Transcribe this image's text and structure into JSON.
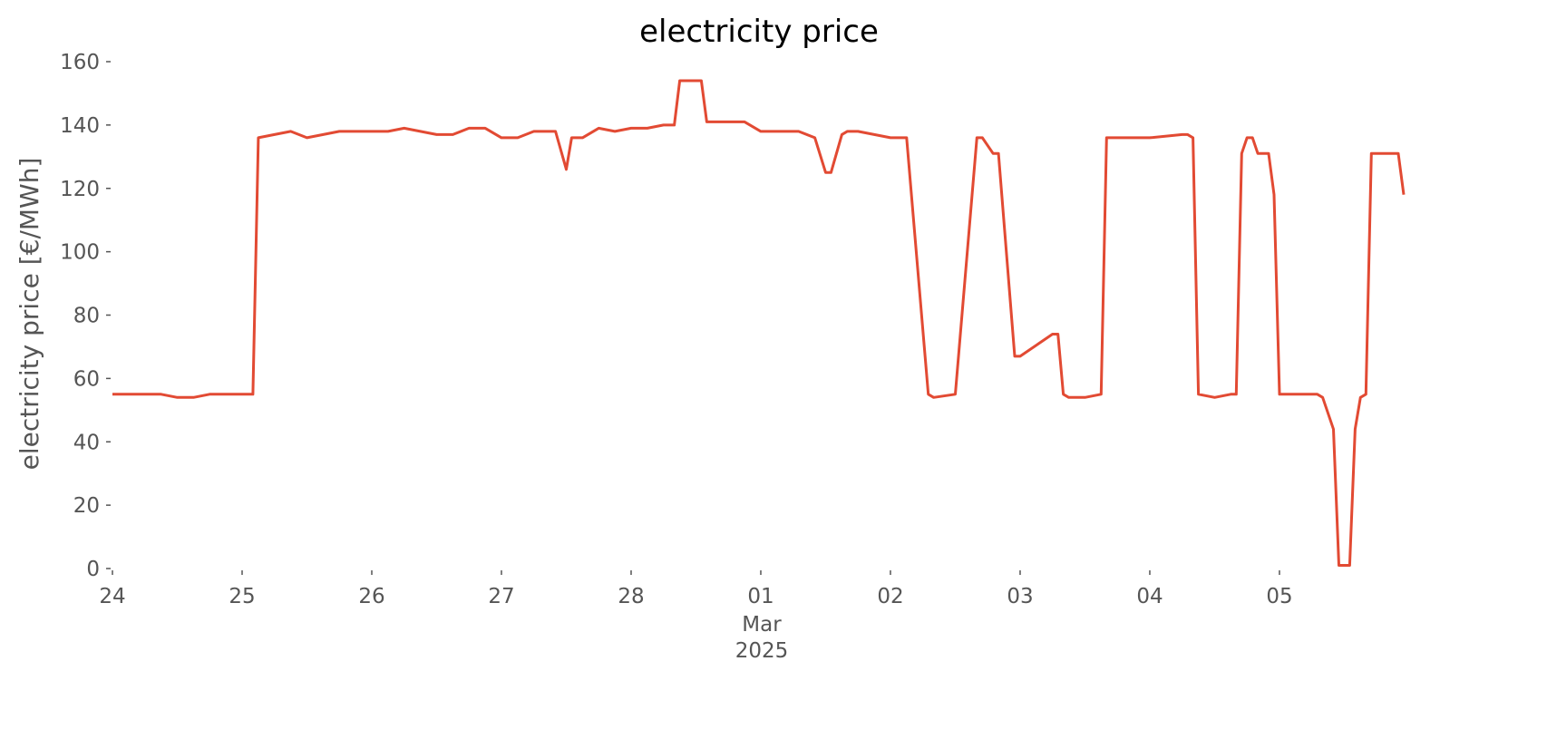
{
  "chart_data": {
    "type": "line",
    "title": "electricity price",
    "ylabel": "electricity price [€/MWh]",
    "color": "#e24a33",
    "grid": false,
    "x": [
      "2025-02-24T00:00",
      "2025-02-24T03:00",
      "2025-02-24T06:00",
      "2025-02-24T09:00",
      "2025-02-24T12:00",
      "2025-02-24T15:00",
      "2025-02-24T18:00",
      "2025-02-24T21:00",
      "2025-02-25T00:00",
      "2025-02-25T02:00",
      "2025-02-25T03:00",
      "2025-02-25T06:00",
      "2025-02-25T09:00",
      "2025-02-25T12:00",
      "2025-02-25T15:00",
      "2025-02-25T18:00",
      "2025-02-25T21:00",
      "2025-02-26T00:00",
      "2025-02-26T03:00",
      "2025-02-26T06:00",
      "2025-02-26T09:00",
      "2025-02-26T12:00",
      "2025-02-26T15:00",
      "2025-02-26T18:00",
      "2025-02-26T21:00",
      "2025-02-27T00:00",
      "2025-02-27T03:00",
      "2025-02-27T06:00",
      "2025-02-27T10:00",
      "2025-02-27T12:00",
      "2025-02-27T13:00",
      "2025-02-27T15:00",
      "2025-02-27T18:00",
      "2025-02-27T21:00",
      "2025-02-28T00:00",
      "2025-02-28T03:00",
      "2025-02-28T06:00",
      "2025-02-28T08:00",
      "2025-02-28T09:00",
      "2025-02-28T13:00",
      "2025-02-28T14:00",
      "2025-02-28T18:00",
      "2025-02-28T21:00",
      "2025-03-01T00:00",
      "2025-03-01T03:00",
      "2025-03-01T07:00",
      "2025-03-01T10:00",
      "2025-03-01T12:00",
      "2025-03-01T13:00",
      "2025-03-01T15:00",
      "2025-03-01T16:00",
      "2025-03-01T18:00",
      "2025-03-01T21:00",
      "2025-03-02T00:00",
      "2025-03-02T03:00",
      "2025-03-02T07:00",
      "2025-03-02T08:00",
      "2025-03-02T12:00",
      "2025-03-02T16:00",
      "2025-03-02T17:00",
      "2025-03-02T19:00",
      "2025-03-02T20:00",
      "2025-03-02T23:00",
      "2025-03-03T00:00",
      "2025-03-03T06:00",
      "2025-03-03T07:00",
      "2025-03-03T08:00",
      "2025-03-03T09:00",
      "2025-03-03T12:00",
      "2025-03-03T15:00",
      "2025-03-03T16:00",
      "2025-03-03T17:00",
      "2025-03-04T00:00",
      "2025-03-04T06:00",
      "2025-03-04T07:00",
      "2025-03-04T08:00",
      "2025-03-04T09:00",
      "2025-03-04T12:00",
      "2025-03-04T15:00",
      "2025-03-04T16:00",
      "2025-03-04T17:00",
      "2025-03-04T18:00",
      "2025-03-04T19:00",
      "2025-03-04T20:00",
      "2025-03-04T22:00",
      "2025-03-04T23:00",
      "2025-03-05T00:00",
      "2025-03-05T07:00",
      "2025-03-05T08:00",
      "2025-03-05T10:00",
      "2025-03-05T11:00",
      "2025-03-05T13:00",
      "2025-03-05T14:00",
      "2025-03-05T15:00",
      "2025-03-05T16:00",
      "2025-03-05T17:00",
      "2025-03-05T22:00",
      "2025-03-05T23:00"
    ],
    "values": [
      55,
      55,
      55,
      55,
      54,
      54,
      55,
      55,
      55,
      55,
      136,
      137,
      138,
      136,
      137,
      138,
      138,
      138,
      138,
      139,
      138,
      137,
      137,
      139,
      139,
      136,
      136,
      138,
      138,
      126,
      136,
      136,
      139,
      138,
      139,
      139,
      140,
      140,
      154,
      154,
      141,
      141,
      141,
      138,
      138,
      138,
      136,
      125,
      125,
      137,
      138,
      138,
      137,
      136,
      136,
      55,
      54,
      55,
      136,
      136,
      131,
      131,
      67,
      67,
      74,
      74,
      55,
      54,
      54,
      55,
      136,
      136,
      136,
      137,
      137,
      136,
      55,
      54,
      55,
      55,
      131,
      136,
      136,
      131,
      131,
      118,
      55,
      55,
      54,
      44,
      1,
      1,
      44,
      54,
      55,
      131,
      131,
      118
    ],
    "xlim": [
      "2025-02-24T00:00",
      "2025-03-05T23:00"
    ],
    "xticks": [
      {
        "value": "2025-02-24",
        "label": "24"
      },
      {
        "value": "2025-02-25",
        "label": "25"
      },
      {
        "value": "2025-02-26",
        "label": "26"
      },
      {
        "value": "2025-02-27",
        "label": "27"
      },
      {
        "value": "2025-02-28",
        "label": "28"
      },
      {
        "value": "2025-03-01",
        "label": "01"
      },
      {
        "value": "2025-03-02",
        "label": "02"
      },
      {
        "value": "2025-03-03",
        "label": "03"
      },
      {
        "value": "2025-03-04",
        "label": "04"
      },
      {
        "value": "2025-03-05",
        "label": "05"
      }
    ],
    "x_sublabels": [
      "Mar",
      "2025"
    ],
    "ylim": [
      0,
      160
    ],
    "yticks": [
      0,
      20,
      40,
      60,
      80,
      100,
      120,
      140,
      160
    ]
  }
}
